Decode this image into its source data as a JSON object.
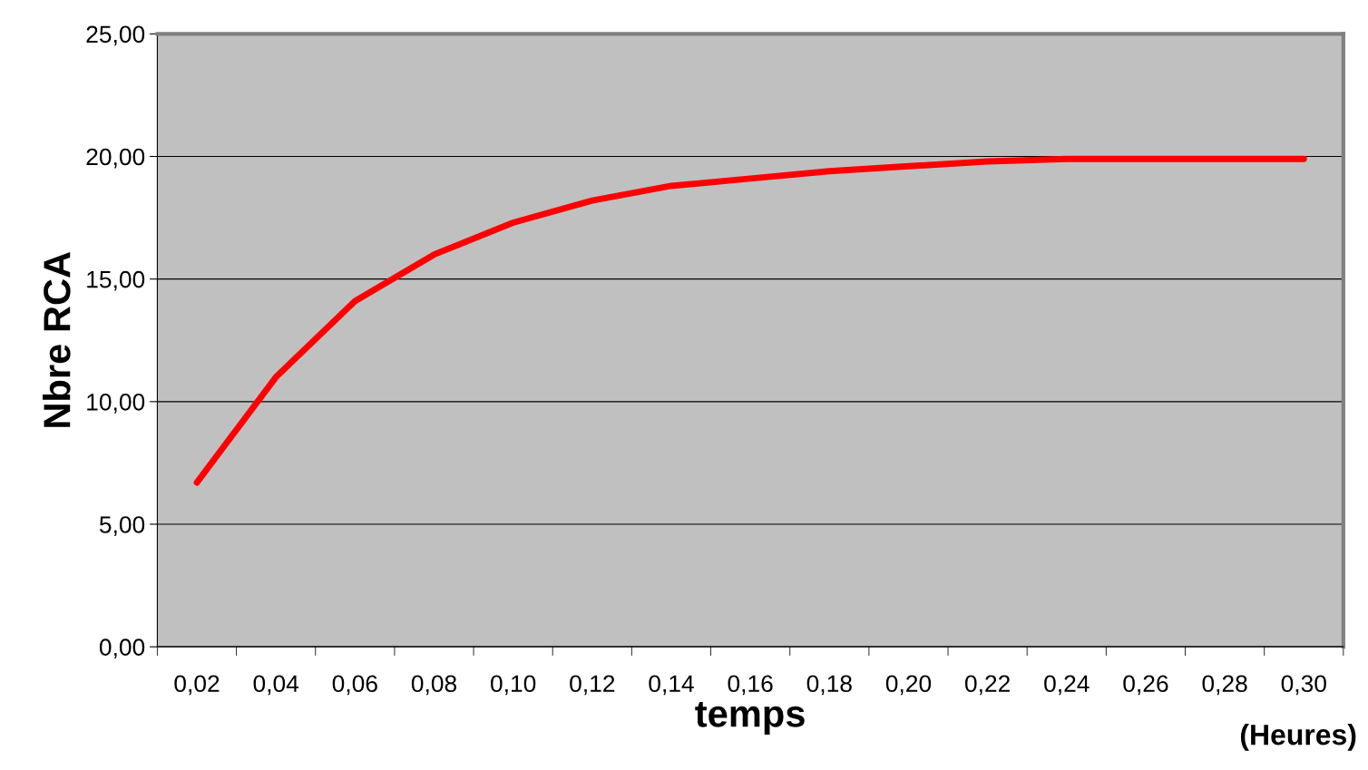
{
  "chart_data": {
    "type": "line",
    "xlabel": "temps",
    "ylabel": "Nbre RCA",
    "categories": [
      "0,02",
      "0,04",
      "0,06",
      "0,08",
      "0,10",
      "0,12",
      "0,14",
      "0,16",
      "0,18",
      "0,20",
      "0,22",
      "0,24",
      "0,26",
      "0,28",
      "0,30"
    ],
    "series": [
      {
        "color": "#ff0000",
        "values": [
          6.7,
          11.0,
          14.1,
          16.0,
          17.3,
          18.2,
          18.8,
          19.1,
          19.4,
          19.6,
          19.8,
          19.9,
          19.9,
          19.9,
          19.9
        ]
      }
    ],
    "ylim": [
      0,
      25
    ],
    "yticks": [
      {
        "value": 0,
        "label": "0,00"
      },
      {
        "value": 5,
        "label": "5,00"
      },
      {
        "value": 10,
        "label": "10,00"
      },
      {
        "value": 15,
        "label": "15,00"
      },
      {
        "value": 20,
        "label": "20,00"
      },
      {
        "value": 25,
        "label": "25,00"
      }
    ],
    "grid": "y",
    "marker": "none",
    "line_style": "solid",
    "annotations": [
      "(Heures)"
    ]
  }
}
